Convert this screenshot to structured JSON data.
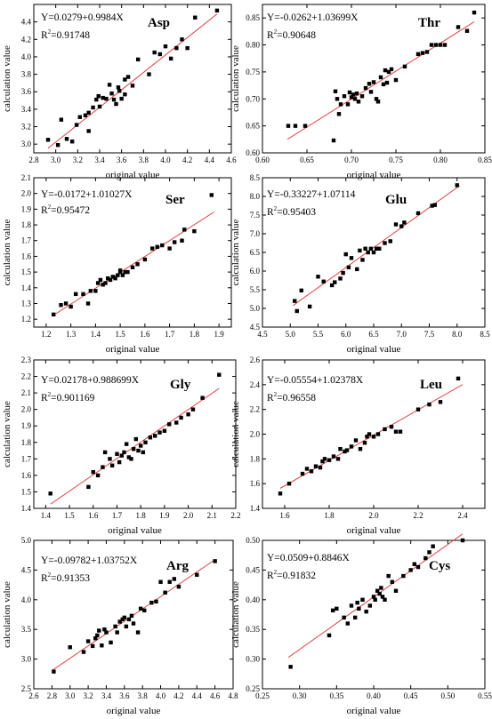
{
  "chart_data": [
    {
      "type": "scatter",
      "title": "Asp",
      "equation": "Y=0.0279+0.9984X",
      "r2_prefix": "R",
      "r2_value": "=0.91748",
      "xlabel": "original value",
      "ylabel": "calculation value",
      "xlim": [
        2.8,
        4.6
      ],
      "ylim": [
        2.9,
        4.6
      ],
      "xticks": [
        2.8,
        3.0,
        3.2,
        3.4,
        3.6,
        3.8,
        4.0,
        4.2,
        4.4,
        4.6
      ],
      "xtick_labels": [
        "2.8",
        "3.0",
        "3.2",
        "3.4",
        "3.6",
        "3.8",
        "4.0",
        "4.2",
        "4.4",
        "4.6"
      ],
      "yticks": [
        3.0,
        3.2,
        3.4,
        3.6,
        3.8,
        4.0,
        4.2,
        4.4
      ],
      "ytick_labels": [
        "3.0",
        "3.2",
        "3.4",
        "3.6",
        "3.8",
        "4.0",
        "4.2",
        "4.4"
      ],
      "fit": {
        "intercept": 0.0279,
        "slope": 0.9984,
        "x": [
          2.93,
          4.47
        ]
      },
      "x": [
        2.93,
        3.02,
        3.05,
        3.1,
        3.15,
        3.19,
        3.22,
        3.27,
        3.3,
        3.3,
        3.34,
        3.37,
        3.39,
        3.4,
        3.43,
        3.46,
        3.49,
        3.51,
        3.53,
        3.55,
        3.57,
        3.58,
        3.6,
        3.63,
        3.63,
        3.66,
        3.7,
        3.75,
        3.85,
        3.9,
        3.95,
        4.0,
        4.05,
        4.1,
        4.15,
        4.2,
        4.27,
        4.47
      ],
      "y": [
        3.05,
        2.99,
        3.28,
        3.06,
        3.03,
        3.22,
        3.31,
        3.33,
        3.15,
        3.36,
        3.42,
        3.51,
        3.55,
        3.43,
        3.53,
        3.52,
        3.68,
        3.58,
        3.51,
        3.46,
        3.65,
        3.61,
        3.52,
        3.57,
        3.74,
        3.77,
        3.67,
        3.97,
        3.8,
        4.05,
        4.03,
        4.12,
        3.98,
        4.1,
        4.2,
        4.1,
        4.45,
        4.53
      ]
    },
    {
      "type": "scatter",
      "title": "Thr",
      "equation": "Y=-0.0262+1.03699X",
      "r2_prefix": "R",
      "r2_value": "=0.90648",
      "xlabel": "original value",
      "ylabel": "calculation value",
      "xlim": [
        0.6,
        0.85
      ],
      "ylim": [
        0.6,
        0.875
      ],
      "xticks": [
        0.6,
        0.65,
        0.7,
        0.75,
        0.8,
        0.85
      ],
      "xtick_labels": [
        "0.60",
        "0.65",
        "0.70",
        "0.75",
        "0.80",
        "0.85"
      ],
      "yticks": [
        0.6,
        0.65,
        0.7,
        0.75,
        0.8,
        0.85
      ],
      "ytick_labels": [
        "0.60",
        "0.65",
        "0.70",
        "0.75",
        "0.80",
        "0.85"
      ],
      "fit": {
        "intercept": -0.0262,
        "slope": 1.03699,
        "x": [
          0.628,
          0.838
        ]
      },
      "x": [
        0.629,
        0.637,
        0.648,
        0.68,
        0.682,
        0.684,
        0.686,
        0.688,
        0.692,
        0.696,
        0.698,
        0.7,
        0.702,
        0.704,
        0.706,
        0.708,
        0.712,
        0.716,
        0.72,
        0.722,
        0.725,
        0.728,
        0.73,
        0.733,
        0.736,
        0.738,
        0.74,
        0.742,
        0.745,
        0.75,
        0.76,
        0.775,
        0.78,
        0.785,
        0.79,
        0.795,
        0.8,
        0.805,
        0.82,
        0.83,
        0.838
      ],
      "y": [
        0.65,
        0.65,
        0.65,
        0.623,
        0.714,
        0.7,
        0.672,
        0.69,
        0.705,
        0.69,
        0.712,
        0.703,
        0.708,
        0.7,
        0.71,
        0.695,
        0.705,
        0.72,
        0.728,
        0.713,
        0.731,
        0.7,
        0.695,
        0.74,
        0.727,
        0.753,
        0.73,
        0.75,
        0.755,
        0.735,
        0.76,
        0.783,
        0.785,
        0.787,
        0.8,
        0.8,
        0.8,
        0.8,
        0.833,
        0.826,
        0.86
      ]
    },
    {
      "type": "scatter",
      "title": "Ser",
      "equation": "Y=-0.0172+1.01027X",
      "r2_prefix": "R",
      "r2_value": "=0.95472",
      "xlabel": "original value",
      "ylabel": "calculation value",
      "xlim": [
        1.15,
        1.95
      ],
      "ylim": [
        1.15,
        2.1
      ],
      "xticks": [
        1.2,
        1.3,
        1.4,
        1.5,
        1.6,
        1.7,
        1.8,
        1.9
      ],
      "xtick_labels": [
        "1.2",
        "1.3",
        "1.4",
        "1.5",
        "1.6",
        "1.7",
        "1.8",
        "1.9"
      ],
      "yticks": [
        1.2,
        1.3,
        1.4,
        1.5,
        1.6,
        1.7,
        1.8,
        1.9,
        2.0,
        2.1
      ],
      "ytick_labels": [
        "1.2",
        "1.3",
        "1.4",
        "1.5",
        "1.6",
        "1.7",
        "1.8",
        "1.9",
        "2.0",
        "2.1"
      ],
      "fit": {
        "intercept": -0.0172,
        "slope": 1.01027,
        "x": [
          1.23,
          1.88
        ]
      },
      "x": [
        1.23,
        1.26,
        1.28,
        1.3,
        1.32,
        1.35,
        1.37,
        1.38,
        1.4,
        1.41,
        1.42,
        1.43,
        1.44,
        1.45,
        1.46,
        1.47,
        1.48,
        1.49,
        1.5,
        1.5,
        1.51,
        1.52,
        1.53,
        1.55,
        1.57,
        1.6,
        1.63,
        1.65,
        1.67,
        1.7,
        1.72,
        1.75,
        1.76,
        1.8,
        1.87
      ],
      "y": [
        1.23,
        1.29,
        1.3,
        1.28,
        1.36,
        1.36,
        1.3,
        1.38,
        1.38,
        1.43,
        1.45,
        1.42,
        1.43,
        1.46,
        1.45,
        1.47,
        1.46,
        1.48,
        1.5,
        1.51,
        1.48,
        1.5,
        1.5,
        1.53,
        1.55,
        1.58,
        1.65,
        1.66,
        1.67,
        1.65,
        1.69,
        1.7,
        1.77,
        1.76,
        1.99
      ]
    },
    {
      "type": "scatter",
      "title": "Glu",
      "equation": "Y=-0.33227+1.07114",
      "r2_prefix": "R",
      "r2_value": "=0.95403",
      "xlabel": "original value",
      "ylabel": "calculation value",
      "xlim": [
        4.5,
        8.5
      ],
      "ylim": [
        4.5,
        8.5
      ],
      "xticks": [
        4.5,
        5.0,
        5.5,
        6.0,
        6.5,
        7.0,
        7.5,
        8.0,
        8.5
      ],
      "xtick_labels": [
        "4.5",
        "5.0",
        "5.5",
        "6.0",
        "6.5",
        "7.0",
        "7.5",
        "8.0",
        "8.5"
      ],
      "yticks": [
        4.5,
        5.0,
        5.5,
        6.0,
        6.5,
        7.0,
        7.5,
        8.0,
        8.5
      ],
      "ytick_labels": [
        "4.5",
        "5.0",
        "5.5",
        "6.0",
        "6.5",
        "7.0",
        "7.5",
        "8.0",
        "8.5"
      ],
      "fit": {
        "intercept": -0.33227,
        "slope": 1.07114,
        "x": [
          5.05,
          8.05
        ]
      },
      "x": [
        5.08,
        5.12,
        5.2,
        5.35,
        5.5,
        5.6,
        5.75,
        5.8,
        5.9,
        5.95,
        6.0,
        6.05,
        6.1,
        6.2,
        6.25,
        6.3,
        6.35,
        6.4,
        6.45,
        6.5,
        6.55,
        6.6,
        6.7,
        6.8,
        6.9,
        7.0,
        7.05,
        7.3,
        7.55,
        7.6,
        8.0
      ],
      "y": [
        5.2,
        4.93,
        5.48,
        5.05,
        5.85,
        5.72,
        5.62,
        5.7,
        5.8,
        5.95,
        6.45,
        6.1,
        6.35,
        6.05,
        6.55,
        6.3,
        6.6,
        6.5,
        6.6,
        6.5,
        6.6,
        6.6,
        6.75,
        6.8,
        7.25,
        7.2,
        7.3,
        7.55,
        7.75,
        7.77,
        8.3
      ]
    },
    {
      "type": "scatter",
      "title": "Gly",
      "equation": "Y=0.02178+0.988699X",
      "r2_prefix": "R",
      "r2_value": "=0.901169",
      "xlabel": "original value",
      "ylabel": "calculation value",
      "xlim": [
        1.35,
        2.2
      ],
      "ylim": [
        1.4,
        2.3
      ],
      "xticks": [
        1.4,
        1.5,
        1.6,
        1.7,
        1.8,
        1.9,
        2.0,
        2.1,
        2.2
      ],
      "xtick_labels": [
        "1.4",
        "1.5",
        "1.6",
        "1.7",
        "1.8",
        "1.9",
        "2.0",
        "2.1",
        "2.2"
      ],
      "yticks": [
        1.4,
        1.5,
        1.6,
        1.7,
        1.8,
        1.9,
        2.0,
        2.1,
        2.2,
        2.3
      ],
      "ytick_labels": [
        "1.4",
        "1.5",
        "1.6",
        "1.7",
        "1.8",
        "1.9",
        "2.0",
        "2.1",
        "2.2",
        "2.3"
      ],
      "fit": {
        "intercept": 0.02178,
        "slope": 0.988699,
        "x": [
          1.42,
          2.13
        ]
      },
      "x": [
        1.42,
        1.58,
        1.6,
        1.62,
        1.64,
        1.65,
        1.67,
        1.68,
        1.7,
        1.71,
        1.72,
        1.73,
        1.74,
        1.75,
        1.76,
        1.77,
        1.78,
        1.79,
        1.8,
        1.81,
        1.82,
        1.84,
        1.86,
        1.88,
        1.9,
        1.92,
        1.95,
        1.97,
        2.0,
        2.02,
        2.06,
        2.13
      ],
      "y": [
        1.49,
        1.53,
        1.62,
        1.6,
        1.65,
        1.74,
        1.7,
        1.66,
        1.73,
        1.68,
        1.72,
        1.74,
        1.79,
        1.71,
        1.7,
        1.76,
        1.82,
        1.75,
        1.78,
        1.74,
        1.8,
        1.83,
        1.84,
        1.86,
        1.87,
        1.91,
        1.92,
        1.95,
        1.97,
        2.0,
        2.07,
        2.21
      ]
    },
    {
      "type": "scatter",
      "title": "Leu",
      "equation": "Y=-0.05554+1.02378X",
      "r2_prefix": "R",
      "r2_value": "=0.96558",
      "xlabel": "original value",
      "ylabel": "calculation value",
      "xlim": [
        1.5,
        2.5
      ],
      "ylim": [
        1.4,
        2.6
      ],
      "xticks": [
        1.6,
        1.8,
        2.0,
        2.2,
        2.4
      ],
      "xtick_labels": [
        "1.6",
        "1.8",
        "2.0",
        "2.2",
        "2.4"
      ],
      "yticks": [
        1.4,
        1.6,
        1.8,
        2.0,
        2.2,
        2.4,
        2.6
      ],
      "ytick_labels": [
        "1.4",
        "1.6",
        "1.8",
        "2.0",
        "2.2",
        "2.4",
        "2.6"
      ],
      "fit": {
        "intercept": -0.05554,
        "slope": 1.02378,
        "x": [
          1.58,
          2.4
        ]
      },
      "x": [
        1.58,
        1.62,
        1.68,
        1.7,
        1.72,
        1.74,
        1.76,
        1.77,
        1.78,
        1.8,
        1.82,
        1.84,
        1.85,
        1.87,
        1.88,
        1.9,
        1.92,
        1.94,
        1.96,
        1.97,
        1.98,
        2.0,
        2.02,
        2.05,
        2.08,
        2.1,
        2.12,
        2.2,
        2.25,
        2.3,
        2.38
      ],
      "y": [
        1.52,
        1.6,
        1.68,
        1.72,
        1.7,
        1.74,
        1.73,
        1.78,
        1.8,
        1.79,
        1.82,
        1.8,
        1.88,
        1.86,
        1.87,
        1.9,
        1.95,
        1.88,
        1.93,
        1.98,
        2.0,
        1.98,
        2.0,
        2.04,
        2.06,
        2.02,
        2.02,
        2.2,
        2.24,
        2.26,
        2.45
      ]
    },
    {
      "type": "scatter",
      "title": "Arg",
      "equation": "Y=-0.09782+1.03752X",
      "r2_prefix": "R",
      "r2_value": "=0.91353",
      "xlabel": "original value",
      "ylabel": "calculation value",
      "xlim": [
        2.6,
        4.8
      ],
      "ylim": [
        2.5,
        5.0
      ],
      "xticks": [
        2.6,
        2.8,
        3.0,
        3.2,
        3.4,
        3.6,
        3.8,
        4.0,
        4.2,
        4.4,
        4.6,
        4.8
      ],
      "xtick_labels": [
        "2.6",
        "2.8",
        "3.0",
        "3.2",
        "3.4",
        "3.6",
        "3.8",
        "4.0",
        "4.2",
        "4.4",
        "4.6",
        "4.8"
      ],
      "yticks": [
        2.5,
        3.0,
        3.5,
        4.0,
        4.5,
        5.0
      ],
      "ytick_labels": [
        "2.5",
        "3.0",
        "3.5",
        "4.0",
        "4.5",
        "5.0"
      ],
      "fit": {
        "intercept": -0.09782,
        "slope": 1.03752,
        "x": [
          2.8,
          4.6
        ]
      },
      "x": [
        2.82,
        3.0,
        3.15,
        3.2,
        3.25,
        3.28,
        3.3,
        3.32,
        3.35,
        3.38,
        3.4,
        3.45,
        3.5,
        3.52,
        3.55,
        3.58,
        3.6,
        3.62,
        3.65,
        3.68,
        3.7,
        3.75,
        3.78,
        3.82,
        3.9,
        3.95,
        4.0,
        4.05,
        4.1,
        4.15,
        4.2,
        4.4,
        4.6
      ],
      "y": [
        2.79,
        3.2,
        3.12,
        3.3,
        3.22,
        3.35,
        3.4,
        3.48,
        3.23,
        3.5,
        3.45,
        3.28,
        3.55,
        3.45,
        3.63,
        3.67,
        3.7,
        3.55,
        3.67,
        3.73,
        3.6,
        3.45,
        3.85,
        3.82,
        3.95,
        3.97,
        4.3,
        4.12,
        4.3,
        4.35,
        4.22,
        4.42,
        4.65
      ]
    },
    {
      "type": "scatter",
      "title": "Cys",
      "equation": "Y=0.0509+0.8846X",
      "r2_prefix": "R",
      "r2_value": "=0.91832",
      "xlabel": "original value",
      "ylabel": "calculation value",
      "xlim": [
        0.25,
        0.55
      ],
      "ylim": [
        0.25,
        0.5
      ],
      "xticks": [
        0.25,
        0.3,
        0.35,
        0.4,
        0.45,
        0.5,
        0.55
      ],
      "xtick_labels": [
        "0.25",
        "0.30",
        "0.35",
        "0.40",
        "0.45",
        "0.50",
        "0.55"
      ],
      "yticks": [
        0.25,
        0.3,
        0.35,
        0.4,
        0.45,
        0.5
      ],
      "ytick_labels": [
        "0.25",
        "0.30",
        "0.35",
        "0.40",
        "0.45",
        "0.50"
      ],
      "fit": {
        "intercept": 0.0509,
        "slope": 0.8846,
        "x": [
          0.285,
          0.52
        ]
      },
      "x": [
        0.288,
        0.34,
        0.345,
        0.35,
        0.36,
        0.365,
        0.37,
        0.375,
        0.378,
        0.38,
        0.385,
        0.39,
        0.395,
        0.4,
        0.402,
        0.405,
        0.408,
        0.41,
        0.412,
        0.415,
        0.42,
        0.425,
        0.43,
        0.44,
        0.45,
        0.455,
        0.46,
        0.47,
        0.475,
        0.48,
        0.52
      ],
      "y": [
        0.287,
        0.34,
        0.382,
        0.385,
        0.37,
        0.36,
        0.39,
        0.37,
        0.395,
        0.385,
        0.4,
        0.38,
        0.39,
        0.405,
        0.4,
        0.415,
        0.41,
        0.42,
        0.405,
        0.4,
        0.44,
        0.43,
        0.415,
        0.44,
        0.45,
        0.46,
        0.455,
        0.47,
        0.48,
        0.49,
        0.5
      ]
    }
  ]
}
